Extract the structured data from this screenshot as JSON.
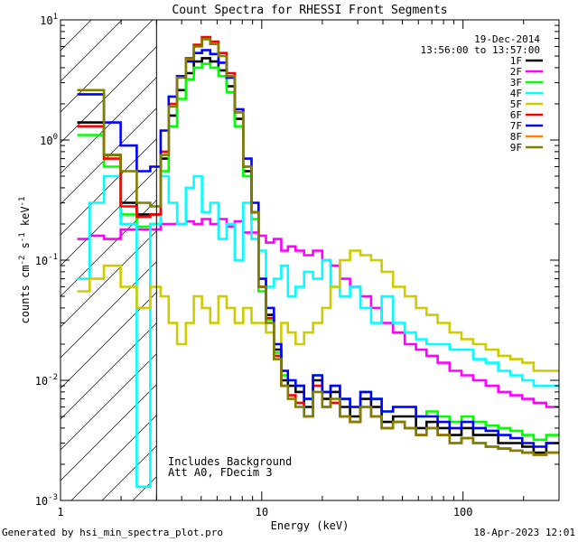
{
  "chart_data": {
    "type": "line",
    "title": "Count Spectra for RHESSI Front Segments",
    "xlabel": "Energy (keV)",
    "ylabel_parts": [
      "counts cm",
      "-2",
      " s",
      "-1",
      " keV",
      "-1"
    ],
    "xscale": "log",
    "yscale": "log",
    "xlim": [
      1,
      300
    ],
    "ylim": [
      0.001,
      10
    ],
    "x_ticks": [
      {
        "v": 1,
        "label": "1"
      },
      {
        "v": 10,
        "label": "10"
      },
      {
        "v": 100,
        "label": "100"
      }
    ],
    "y_ticks": [
      {
        "v": 0.001,
        "base": "10",
        "exp": "-3"
      },
      {
        "v": 0.01,
        "base": "10",
        "exp": "-2"
      },
      {
        "v": 0.1,
        "base": "10",
        "exp": "-1"
      },
      {
        "v": 1,
        "base": "10",
        "exp": "0"
      },
      {
        "v": 10,
        "base": "10",
        "exp": "1"
      }
    ],
    "threshold_line_x": 3,
    "hatched_region": [
      1,
      3
    ],
    "date": "19-Dec-2014",
    "time_range": "13:56:00 to 13:57:00",
    "legend_position": "top-right",
    "annotations": [
      "Includes Background",
      "Att A0, FDecim 3"
    ],
    "series": [
      {
        "name": "1F",
        "color": "#000000",
        "x": [
          1.3,
          1.5,
          1.8,
          2.2,
          2.6,
          3,
          3.3,
          3.6,
          4,
          4.4,
          4.8,
          5.3,
          5.8,
          6.4,
          7,
          7.7,
          8.5,
          9.3,
          10,
          11,
          12,
          13,
          14,
          15.5,
          17,
          19,
          21,
          23,
          26,
          29,
          33,
          37,
          42,
          48,
          55,
          62,
          70,
          80,
          92,
          105,
          120,
          140,
          160,
          185,
          210,
          240,
          280
        ],
        "y": [
          1.4,
          1.4,
          0.75,
          0.3,
          0.24,
          0.24,
          0.7,
          1.6,
          2.6,
          3.6,
          4.5,
          4.8,
          4.5,
          3.8,
          2.8,
          1.5,
          0.55,
          0.25,
          0.06,
          0.035,
          0.018,
          0.01,
          0.009,
          0.008,
          0.006,
          0.01,
          0.007,
          0.008,
          0.006,
          0.005,
          0.007,
          0.006,
          0.0045,
          0.005,
          0.005,
          0.004,
          0.0045,
          0.004,
          0.0035,
          0.004,
          0.0035,
          0.0035,
          0.003,
          0.003,
          0.0028,
          0.0025,
          0.003
        ]
      },
      {
        "name": "2F",
        "color": "#ff00ff",
        "x": [
          1.3,
          1.5,
          1.8,
          2.2,
          2.6,
          3,
          3.3,
          3.6,
          4,
          4.4,
          4.8,
          5.3,
          5.8,
          6.4,
          7,
          7.7,
          8.5,
          9.3,
          10,
          11,
          12,
          13,
          14,
          15.5,
          17,
          19,
          21,
          23,
          26,
          29,
          33,
          37,
          42,
          48,
          55,
          62,
          70,
          80,
          92,
          105,
          120,
          140,
          160,
          185,
          210,
          240,
          280
        ],
        "y": [
          0.15,
          0.16,
          0.15,
          0.18,
          0.18,
          0.18,
          0.2,
          0.2,
          0.2,
          0.21,
          0.2,
          0.22,
          0.2,
          0.22,
          0.19,
          0.21,
          0.17,
          0.17,
          0.16,
          0.14,
          0.15,
          0.12,
          0.13,
          0.12,
          0.11,
          0.12,
          0.1,
          0.09,
          0.07,
          0.06,
          0.05,
          0.04,
          0.03,
          0.025,
          0.02,
          0.018,
          0.016,
          0.014,
          0.012,
          0.011,
          0.01,
          0.009,
          0.008,
          0.0075,
          0.007,
          0.0065,
          0.006
        ]
      },
      {
        "name": "3F",
        "color": "#00ff00",
        "x": [
          1.3,
          1.5,
          1.8,
          2.2,
          2.6,
          3,
          3.3,
          3.6,
          4,
          4.4,
          4.8,
          5.3,
          5.8,
          6.4,
          7,
          7.7,
          8.5,
          9.3,
          10,
          11,
          12,
          13,
          14,
          15.5,
          17,
          19,
          21,
          23,
          26,
          29,
          33,
          37,
          42,
          48,
          55,
          62,
          70,
          80,
          92,
          105,
          120,
          140,
          160,
          185,
          210,
          240,
          280
        ],
        "y": [
          1.1,
          1.1,
          0.6,
          0.24,
          0.19,
          0.2,
          0.55,
          1.3,
          2.2,
          3.2,
          4,
          4.3,
          4,
          3.4,
          2.5,
          1.3,
          0.5,
          0.22,
          0.055,
          0.032,
          0.017,
          0.011,
          0.01,
          0.009,
          0.007,
          0.011,
          0.008,
          0.009,
          0.007,
          0.006,
          0.008,
          0.007,
          0.0055,
          0.006,
          0.006,
          0.005,
          0.0055,
          0.005,
          0.0045,
          0.005,
          0.0045,
          0.0042,
          0.004,
          0.0038,
          0.0035,
          0.0032,
          0.0035
        ]
      },
      {
        "name": "4F",
        "color": "#00ffff",
        "x": [
          1.3,
          1.5,
          1.8,
          2.2,
          2.6,
          3,
          3.3,
          3.6,
          4,
          4.4,
          4.8,
          5.3,
          5.8,
          6.4,
          7,
          7.7,
          8.5,
          9.3,
          10,
          11,
          12,
          13,
          14,
          15.5,
          17,
          19,
          21,
          23,
          26,
          29,
          33,
          37,
          42,
          48,
          55,
          62,
          70,
          80,
          92,
          105,
          120,
          140,
          160,
          185,
          210,
          240,
          280
        ],
        "y": [
          0.07,
          0.3,
          0.5,
          0.2,
          0.0013,
          0.2,
          0.5,
          0.3,
          0.2,
          0.4,
          0.5,
          0.25,
          0.3,
          0.15,
          0.2,
          0.1,
          0.3,
          0.15,
          0.12,
          0.06,
          0.07,
          0.09,
          0.05,
          0.06,
          0.08,
          0.07,
          0.1,
          0.06,
          0.05,
          0.06,
          0.04,
          0.03,
          0.05,
          0.03,
          0.025,
          0.022,
          0.02,
          0.02,
          0.018,
          0.018,
          0.015,
          0.014,
          0.012,
          0.011,
          0.01,
          0.009,
          0.009
        ]
      },
      {
        "name": "5F",
        "color": "#cccc00",
        "x": [
          1.3,
          1.5,
          1.8,
          2.2,
          2.6,
          3,
          3.3,
          3.6,
          4,
          4.4,
          4.8,
          5.3,
          5.8,
          6.4,
          7,
          7.7,
          8.5,
          9.3,
          10,
          11,
          12,
          13,
          14,
          15.5,
          17,
          19,
          21,
          23,
          26,
          29,
          33,
          37,
          42,
          48,
          55,
          62,
          70,
          80,
          92,
          105,
          120,
          140,
          160,
          185,
          210,
          240,
          280
        ],
        "y": [
          0.055,
          0.07,
          0.09,
          0.06,
          0.04,
          0.06,
          0.05,
          0.03,
          0.02,
          0.03,
          0.05,
          0.04,
          0.03,
          0.05,
          0.04,
          0.03,
          0.04,
          0.03,
          0.03,
          0.025,
          0.02,
          0.03,
          0.025,
          0.02,
          0.025,
          0.03,
          0.04,
          0.06,
          0.1,
          0.12,
          0.11,
          0.1,
          0.08,
          0.06,
          0.05,
          0.04,
          0.035,
          0.03,
          0.025,
          0.022,
          0.02,
          0.018,
          0.016,
          0.015,
          0.014,
          0.012,
          0.012
        ]
      },
      {
        "name": "6F",
        "color": "#ff0000",
        "x": [
          1.3,
          1.5,
          1.8,
          2.2,
          2.6,
          3,
          3.3,
          3.6,
          4,
          4.4,
          4.8,
          5.3,
          5.8,
          6.4,
          7,
          7.7,
          8.5,
          9.3,
          10,
          11,
          12,
          13,
          14,
          15.5,
          17,
          19,
          21,
          23,
          26,
          29,
          33,
          37,
          42,
          48,
          55,
          62,
          70,
          80,
          92,
          105,
          120,
          140,
          160,
          185,
          210,
          240,
          280
        ],
        "y": [
          1.3,
          1.3,
          0.7,
          0.28,
          0.23,
          0.24,
          0.8,
          2,
          3.4,
          4.8,
          6.2,
          7.2,
          6.6,
          5.3,
          3.6,
          1.8,
          0.6,
          0.25,
          0.06,
          0.033,
          0.016,
          0.009,
          0.0075,
          0.0065,
          0.005,
          0.009,
          0.006,
          0.0065,
          0.005,
          0.0045,
          0.006,
          0.005,
          0.004,
          0.0045,
          0.004,
          0.0035,
          0.004,
          0.0035,
          0.003,
          0.0033,
          0.003,
          0.0028,
          0.0027,
          0.0026,
          0.0025,
          0.0024,
          0.0025
        ]
      },
      {
        "name": "7F",
        "color": "#0000ff",
        "x": [
          1.3,
          1.5,
          1.8,
          2.2,
          2.6,
          3,
          3.3,
          3.6,
          4,
          4.4,
          4.8,
          5.3,
          5.8,
          6.4,
          7,
          7.7,
          8.5,
          9.3,
          10,
          11,
          12,
          13,
          14,
          15.5,
          17,
          19,
          21,
          23,
          26,
          29,
          33,
          37,
          42,
          48,
          55,
          62,
          70,
          80,
          92,
          105,
          120,
          140,
          160,
          185,
          210,
          240,
          280
        ],
        "y": [
          2.4,
          2.4,
          1.4,
          0.9,
          0.55,
          0.6,
          1.2,
          2.3,
          3.4,
          4.5,
          5.3,
          5.6,
          5.2,
          4.4,
          3.3,
          1.8,
          0.7,
          0.3,
          0.07,
          0.04,
          0.02,
          0.012,
          0.01,
          0.009,
          0.007,
          0.011,
          0.008,
          0.009,
          0.007,
          0.006,
          0.008,
          0.007,
          0.0055,
          0.006,
          0.006,
          0.005,
          0.005,
          0.0045,
          0.004,
          0.0045,
          0.004,
          0.0038,
          0.0035,
          0.0033,
          0.003,
          0.0028,
          0.003
        ]
      },
      {
        "name": "8F",
        "color": "#ff8000",
        "x": [],
        "y": []
      },
      {
        "name": "9F",
        "color": "#808000",
        "x": [
          1.3,
          1.5,
          1.8,
          2.2,
          2.6,
          3,
          3.3,
          3.6,
          4,
          4.4,
          4.8,
          5.3,
          5.8,
          6.4,
          7,
          7.7,
          8.5,
          9.3,
          10,
          11,
          12,
          13,
          14,
          15.5,
          17,
          19,
          21,
          23,
          26,
          29,
          33,
          37,
          42,
          48,
          55,
          62,
          70,
          80,
          92,
          105,
          120,
          140,
          160,
          185,
          210,
          240,
          280
        ],
        "y": [
          2.6,
          2.6,
          0.75,
          0.55,
          0.3,
          0.28,
          0.75,
          1.9,
          3.3,
          4.7,
          6,
          6.9,
          6.3,
          5,
          3.4,
          1.7,
          0.6,
          0.25,
          0.06,
          0.03,
          0.015,
          0.009,
          0.007,
          0.006,
          0.005,
          0.008,
          0.006,
          0.007,
          0.005,
          0.0045,
          0.006,
          0.005,
          0.004,
          0.0045,
          0.004,
          0.0035,
          0.004,
          0.0035,
          0.003,
          0.0033,
          0.003,
          0.0028,
          0.0027,
          0.0026,
          0.0025,
          0.0024,
          0.0025
        ]
      }
    ]
  },
  "footer": {
    "left": "Generated by hsi_min_spectra_plot.pro",
    "right": "18-Apr-2023 12:01"
  }
}
